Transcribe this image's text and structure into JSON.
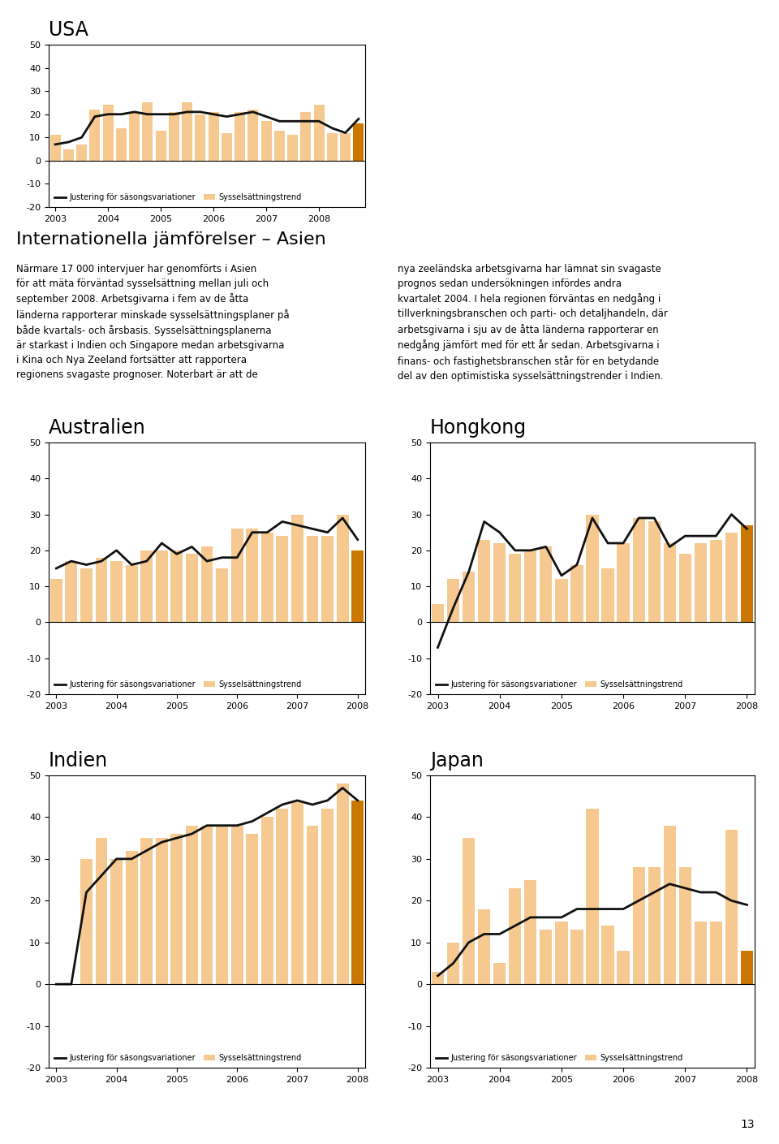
{
  "title": "Internationella jämförelser – Asien",
  "annotations": [
    "Närmare 17 000 intervjuer har genomförts i Asien\nför att mäta förväntad sysselsättning mellan juli och\nseptember 2008. Arbetsgivarna i fem av de åtta\nländerna rapporterar minskade sysselsättningsplaner på\nbåde kvartals- och årsbasis. Sysselsättningsplanerna\när starkast i Indien och Singapore medan arbetsgivarna\ni Kina och Nya Zeeland fortsätter att rapportera\nregionens svagaste prognoser. Noterbart är att de",
    "nya zeeländska arbetsgivarna har lämnat sin svagaste\nprognos sedan undersökningen infördes andra\nkvartalet 2004. I hela regionen förväntas en nedgång i\ntillverkningsbranschen och parti- och detaljhandeln, där\narbetsgivarna i sju av de åtta länderna rapporterar en\nnedgång jämfört med för ett år sedan. Arbetsgivarna i\nfinans- och fastighetsbranschen står för en betydande\ndel av den optimistiska sysselsättningstrender i Indien.",
    "13"
  ],
  "chart_data": [
    {
      "type": "bar",
      "title": "USA",
      "legend": "lower left",
      "categories": [
        "2003",
        null,
        null,
        null,
        "2004",
        null,
        null,
        null,
        "2005",
        null,
        null,
        null,
        "2006",
        null,
        null,
        null,
        "2007",
        null,
        null,
        null,
        "2008",
        null,
        null,
        null
      ],
      "ylim": [
        -20,
        50
      ],
      "yticks": [
        -20,
        -10,
        0,
        10,
        20,
        30,
        40,
        50
      ],
      "series": [
        {
          "name": "Justering för säsongsvariationer",
          "type": "line",
          "color": "#111111",
          "values": [
            7,
            8,
            10,
            19,
            20,
            20,
            21,
            20,
            20,
            20,
            21,
            21,
            20,
            19,
            20,
            21,
            19,
            17,
            17,
            17,
            17,
            14,
            12,
            18
          ]
        },
        {
          "name": "Sysselsättningstrend",
          "type": "bar",
          "color": "#F5C990",
          "colors": [
            "#F5C990",
            "#F5C990",
            "#F5C990",
            "#F5C990",
            "#F5C990",
            "#F5C990",
            "#F5C990",
            "#F5C990",
            "#F5C990",
            "#F5C990",
            "#F5C990",
            "#F5C990",
            "#F5C990",
            "#F5C990",
            "#F5C990",
            "#F5C990",
            "#F5C990",
            "#F5C990",
            "#F5C990",
            "#F5C990",
            "#F5C990",
            "#F5C990",
            "#F5C990",
            "#CC7700"
          ],
          "values": [
            11,
            5,
            7,
            22,
            24,
            14,
            21,
            25,
            13,
            21,
            25,
            20,
            21,
            12,
            21,
            22,
            17,
            13,
            11,
            21,
            24,
            12,
            12,
            16
          ]
        }
      ]
    },
    {
      "type": "bar",
      "title": "Australien",
      "legend": "lower left",
      "categories": [
        "2003",
        null,
        null,
        null,
        "2004",
        null,
        null,
        null,
        "2005",
        null,
        null,
        null,
        "2006",
        null,
        null,
        null,
        "2007",
        null,
        null,
        null,
        "2008"
      ],
      "ylim": [
        -20,
        50
      ],
      "yticks": [
        -20,
        -10,
        0,
        10,
        20,
        30,
        40,
        50
      ],
      "series": [
        {
          "name": "Justering för säsongsvariationer",
          "type": "line",
          "color": "#111111",
          "values": [
            15,
            17,
            16,
            17,
            20,
            16,
            17,
            22,
            19,
            21,
            17,
            18,
            18,
            25,
            25,
            28,
            27,
            26,
            25,
            29,
            23
          ]
        },
        {
          "name": "Sysselsättningstrend",
          "type": "bar",
          "color": "#F5C990",
          "colors": [
            "#F5C990",
            "#F5C990",
            "#F5C990",
            "#F5C990",
            "#F5C990",
            "#F5C990",
            "#F5C990",
            "#F5C990",
            "#F5C990",
            "#F5C990",
            "#F5C990",
            "#F5C990",
            "#F5C990",
            "#F5C990",
            "#F5C990",
            "#F5C990",
            "#F5C990",
            "#F5C990",
            "#F5C990",
            "#F5C990",
            "#CC7700"
          ],
          "values": [
            12,
            17,
            15,
            18,
            17,
            16,
            20,
            20,
            20,
            19,
            21,
            15,
            26,
            26,
            25,
            24,
            30,
            24,
            24,
            30,
            20
          ]
        }
      ]
    },
    {
      "type": "bar",
      "title": "Hongkong",
      "legend": "lower left",
      "categories": [
        "2003",
        null,
        null,
        null,
        "2004",
        null,
        null,
        null,
        "2005",
        null,
        null,
        null,
        "2006",
        null,
        null,
        null,
        "2007",
        null,
        null,
        null,
        "2008"
      ],
      "ylim": [
        -20,
        50
      ],
      "yticks": [
        -20,
        -10,
        0,
        10,
        20,
        30,
        40,
        50
      ],
      "series": [
        {
          "name": "Justering för säsongsvariationer",
          "type": "line",
          "color": "#111111",
          "values": [
            -7,
            4,
            14,
            28,
            25,
            20,
            20,
            21,
            13,
            16,
            29,
            22,
            22,
            29,
            29,
            21,
            24,
            24,
            24,
            30,
            26
          ]
        },
        {
          "name": "Sysselsättningstrend",
          "type": "bar",
          "color": "#F5C990",
          "colors": [
            "#F5C990",
            "#F5C990",
            "#F5C990",
            "#F5C990",
            "#F5C990",
            "#F5C990",
            "#F5C990",
            "#F5C990",
            "#F5C990",
            "#F5C990",
            "#F5C990",
            "#F5C990",
            "#F5C990",
            "#F5C990",
            "#F5C990",
            "#F5C990",
            "#F5C990",
            "#F5C990",
            "#F5C990",
            "#F5C990",
            "#CC7700"
          ],
          "values": [
            5,
            12,
            14,
            23,
            22,
            19,
            20,
            21,
            12,
            16,
            30,
            15,
            22,
            29,
            28,
            22,
            19,
            22,
            23,
            25,
            27
          ]
        }
      ]
    },
    {
      "type": "bar",
      "title": "Indien",
      "legend": "lower left",
      "categories": [
        "2003",
        null,
        null,
        null,
        "2004",
        null,
        null,
        null,
        "2005",
        null,
        null,
        null,
        "2006",
        null,
        null,
        null,
        "2007",
        null,
        null,
        null,
        "2008"
      ],
      "ylim": [
        -20,
        50
      ],
      "yticks": [
        -20,
        -10,
        0,
        10,
        20,
        30,
        40,
        50
      ],
      "series": [
        {
          "name": "Justering för säsongsvariationer",
          "type": "line",
          "color": "#111111",
          "values": [
            0,
            0,
            22,
            26,
            30,
            30,
            32,
            34,
            35,
            36,
            38,
            38,
            38,
            39,
            41,
            43,
            44,
            43,
            44,
            47,
            44
          ]
        },
        {
          "name": "Sysselsättningstrend",
          "type": "bar",
          "color": "#F5C990",
          "colors": [
            "#F5C990",
            "#F5C990",
            "#F5C990",
            "#F5C990",
            "#F5C990",
            "#F5C990",
            "#F5C990",
            "#F5C990",
            "#F5C990",
            "#F5C990",
            "#F5C990",
            "#F5C990",
            "#F5C990",
            "#F5C990",
            "#F5C990",
            "#F5C990",
            "#F5C990",
            "#F5C990",
            "#F5C990",
            "#F5C990",
            "#CC7700"
          ],
          "values": [
            0,
            0,
            30,
            35,
            30,
            32,
            35,
            35,
            36,
            38,
            38,
            38,
            38,
            36,
            40,
            42,
            44,
            38,
            42,
            48,
            44
          ]
        }
      ]
    },
    {
      "type": "bar",
      "title": "Japan",
      "legend": "lower left",
      "categories": [
        "2003",
        null,
        null,
        null,
        "2004",
        null,
        null,
        null,
        "2005",
        null,
        null,
        null,
        "2006",
        null,
        null,
        null,
        "2007",
        null,
        null,
        null,
        "2008"
      ],
      "ylim": [
        -20,
        50
      ],
      "yticks": [
        -20,
        -10,
        0,
        10,
        20,
        30,
        40,
        50
      ],
      "series": [
        {
          "name": "Justering för säsongsvariationer",
          "type": "line",
          "color": "#111111",
          "values": [
            2,
            5,
            10,
            12,
            12,
            14,
            16,
            16,
            16,
            18,
            18,
            18,
            18,
            20,
            22,
            24,
            23,
            22,
            22,
            20,
            19
          ]
        },
        {
          "name": "Sysselsättningstrend",
          "type": "bar",
          "color": "#F5C990",
          "colors": [
            "#F5C990",
            "#F5C990",
            "#F5C990",
            "#F5C990",
            "#F5C990",
            "#F5C990",
            "#F5C990",
            "#F5C990",
            "#F5C990",
            "#F5C990",
            "#F5C990",
            "#F5C990",
            "#F5C990",
            "#F5C990",
            "#F5C990",
            "#F5C990",
            "#F5C990",
            "#F5C990",
            "#F5C990",
            "#F5C990",
            "#CC7700"
          ],
          "values": [
            3,
            10,
            35,
            18,
            5,
            23,
            25,
            13,
            15,
            13,
            42,
            14,
            8,
            28,
            28,
            38,
            28,
            15,
            15,
            37,
            8
          ]
        }
      ]
    }
  ]
}
